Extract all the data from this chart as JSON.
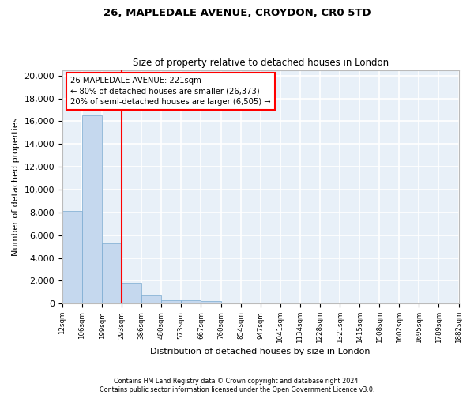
{
  "title_line1": "26, MAPLEDALE AVENUE, CROYDON, CR0 5TD",
  "title_line2": "Size of property relative to detached houses in London",
  "xlabel": "Distribution of detached houses by size in London",
  "ylabel": "Number of detached properties",
  "bar_color": "#c5d8ee",
  "bar_edge_color": "#7aaad0",
  "bg_color": "#e8f0f8",
  "grid_color": "white",
  "annotation_text": "26 MAPLEDALE AVENUE: 221sqm\n← 80% of detached houses are smaller (26,373)\n20% of semi-detached houses are larger (6,505) →",
  "redline_bin": 2,
  "bar_heights": [
    8100,
    16500,
    5300,
    1800,
    750,
    330,
    270,
    210,
    0,
    0,
    0,
    0,
    0,
    0,
    0,
    0,
    0,
    0,
    0,
    0
  ],
  "ylim": [
    0,
    20500
  ],
  "yticks": [
    0,
    2000,
    4000,
    6000,
    8000,
    10000,
    12000,
    14000,
    16000,
    18000,
    20000
  ],
  "xtick_labels": [
    "12sqm",
    "106sqm",
    "199sqm",
    "293sqm",
    "386sqm",
    "480sqm",
    "573sqm",
    "667sqm",
    "760sqm",
    "854sqm",
    "947sqm",
    "1041sqm",
    "1134sqm",
    "1228sqm",
    "1321sqm",
    "1415sqm",
    "1508sqm",
    "1602sqm",
    "1695sqm",
    "1789sqm",
    "1882sqm"
  ],
  "footer_line1": "Contains HM Land Registry data © Crown copyright and database right 2024.",
  "footer_line2": "Contains public sector information licensed under the Open Government Licence v3.0.",
  "n_bins": 20
}
